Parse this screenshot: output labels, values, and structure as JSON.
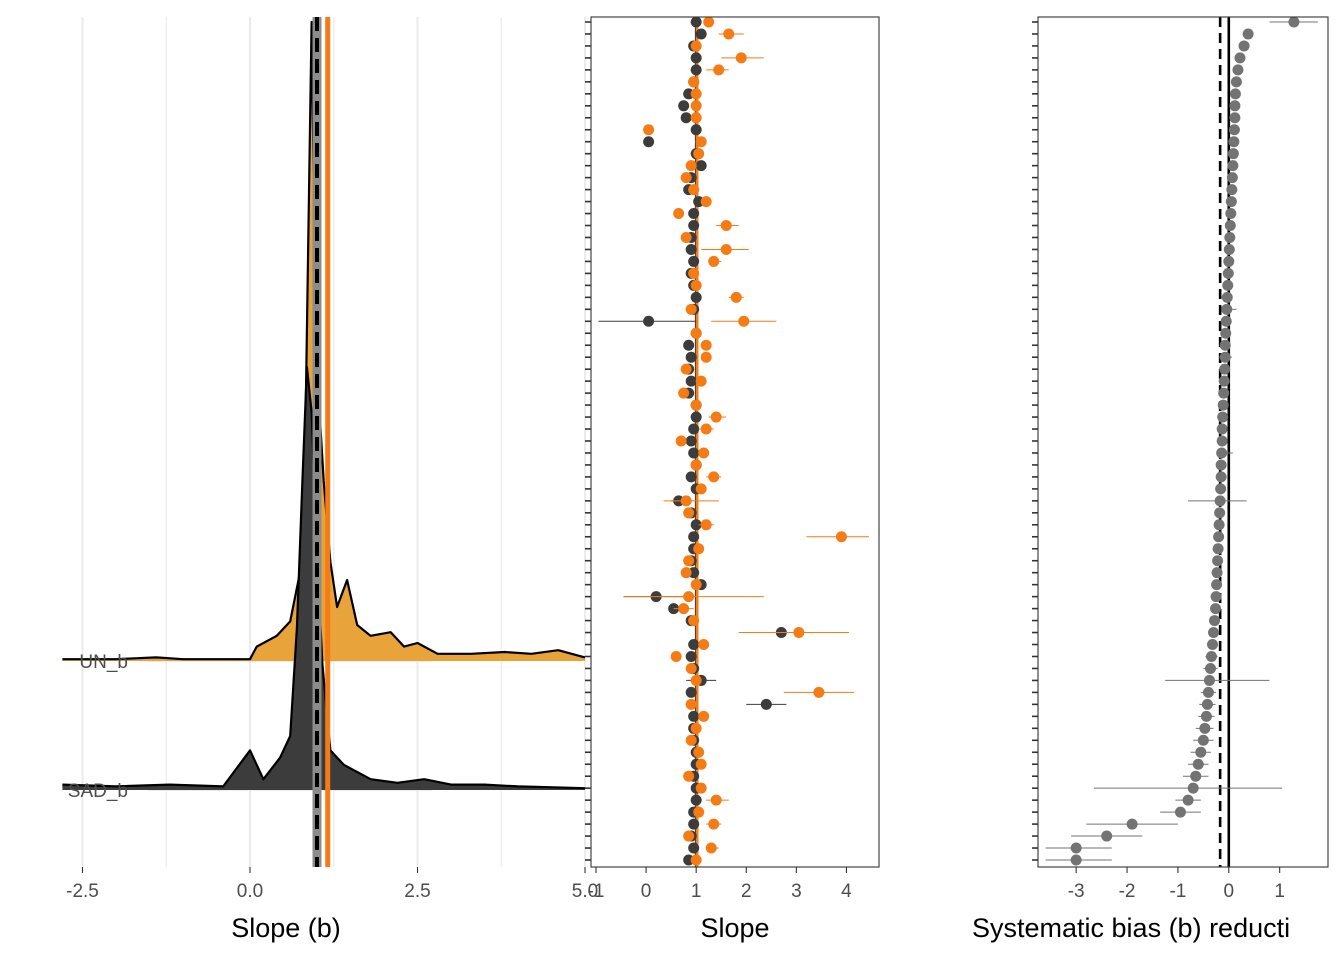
{
  "colors": {
    "orange": "#f57b14",
    "orange_fill": "#e8a33a",
    "dark": "#3c3c3c",
    "grey_point": "#737373",
    "grid": "#ebebeb",
    "axis_text": "#4d4d4d",
    "dashed_line": "#000000"
  },
  "chart_data": [
    {
      "type": "area",
      "xlabel": "Slope (b)",
      "x_ticks": [
        "-2.5",
        "0.0",
        "2.5",
        "5.0"
      ],
      "x_tick_values": [
        -2.5,
        0,
        2.5,
        5
      ],
      "xlim": [
        -2.9,
        5.2
      ],
      "categories": [
        "UN_b",
        "SAD_b"
      ],
      "reference_lines": [
        {
          "x": 1.0,
          "style": "dashed",
          "color": "#000000"
        },
        {
          "x": 1.16,
          "style": "solid",
          "color": "#f57b14"
        }
      ],
      "series": [
        {
          "name": "UN_b",
          "fill": "#e8a33a",
          "density": [
            [
              -2.8,
              0.01
            ],
            [
              -2.0,
              0.01
            ],
            [
              -1.4,
              0.02
            ],
            [
              -1.0,
              0.01
            ],
            [
              0.0,
              0.01
            ],
            [
              0.1,
              0.08
            ],
            [
              0.4,
              0.14
            ],
            [
              0.6,
              0.22
            ],
            [
              0.75,
              0.5
            ],
            [
              0.82,
              1.1
            ],
            [
              0.88,
              2.6
            ],
            [
              0.92,
              3.55
            ],
            [
              0.96,
              2.4
            ],
            [
              1.02,
              1.5
            ],
            [
              1.1,
              1.0
            ],
            [
              1.2,
              0.55
            ],
            [
              1.3,
              0.3
            ],
            [
              1.45,
              0.45
            ],
            [
              1.6,
              0.2
            ],
            [
              1.8,
              0.14
            ],
            [
              2.1,
              0.16
            ],
            [
              2.3,
              0.08
            ],
            [
              2.5,
              0.1
            ],
            [
              2.8,
              0.04
            ],
            [
              3.3,
              0.04
            ],
            [
              3.8,
              0.05
            ],
            [
              4.2,
              0.04
            ],
            [
              4.6,
              0.06
            ],
            [
              5.0,
              0.02
            ]
          ]
        },
        {
          "name": "SAD_b",
          "fill": "#3c3c3c",
          "density": [
            [
              -2.8,
              0.03
            ],
            [
              -2.0,
              0.02
            ],
            [
              -1.2,
              0.03
            ],
            [
              -0.4,
              0.02
            ],
            [
              0.0,
              0.22
            ],
            [
              0.2,
              0.06
            ],
            [
              0.45,
              0.18
            ],
            [
              0.6,
              0.3
            ],
            [
              0.7,
              0.9
            ],
            [
              0.78,
              1.7
            ],
            [
              0.85,
              2.35
            ],
            [
              0.92,
              2.1
            ],
            [
              1.0,
              1.3
            ],
            [
              1.08,
              0.7
            ],
            [
              1.2,
              0.22
            ],
            [
              1.4,
              0.14
            ],
            [
              1.8,
              0.06
            ],
            [
              2.2,
              0.04
            ],
            [
              2.6,
              0.06
            ],
            [
              3.0,
              0.03
            ],
            [
              3.5,
              0.03
            ],
            [
              4.0,
              0.02
            ],
            [
              5.0,
              0.01
            ]
          ]
        }
      ]
    },
    {
      "type": "scatter",
      "xlabel": "Slope",
      "x_ticks": [
        "-1",
        "0",
        "1",
        "2",
        "3",
        "4"
      ],
      "x_tick_values": [
        -1,
        0,
        1,
        2,
        3,
        4
      ],
      "xlim": [
        -1.1,
        4.65
      ],
      "n_rows": 71,
      "reference_lines": [
        {
          "x": 1.0,
          "color": "#3c3c3c"
        },
        {
          "x": 1.02,
          "color": "#f57b14"
        }
      ],
      "series": [
        {
          "name": "",
          "color": "#f57b14",
          "values": [
            1.25,
            1.65,
            1.0,
            1.9,
            1.45,
            0.95,
            1.0,
            1.0,
            1.0,
            0.05,
            1.1,
            1.05,
            0.9,
            0.8,
            0.95,
            1.2,
            0.65,
            1.6,
            0.8,
            1.6,
            1.35,
            0.95,
            1.0,
            1.8,
            0.9,
            1.95,
            1.0,
            1.2,
            1.2,
            0.8,
            1.1,
            0.75,
            1.0,
            1.4,
            1.2,
            0.7,
            1.15,
            1.0,
            1.35,
            1.1,
            0.8,
            0.85,
            1.2,
            3.9,
            1.05,
            0.85,
            0.8,
            1.0,
            0.85,
            0.75,
            0.95,
            3.05,
            1.15,
            0.6,
            0.9,
            1.0,
            3.45,
            0.9,
            1.15,
            1.0,
            0.9,
            1.05,
            1.1,
            0.85,
            1.1,
            1.4,
            1.05,
            1.35,
            0.85,
            1.3,
            1.0
          ],
          "err_low": [
            1.15,
            1.45,
            0.95,
            1.5,
            1.2,
            0.9,
            0.95,
            0.95,
            0.95,
            0.0,
            1.05,
            1.0,
            0.85,
            0.75,
            0.9,
            1.1,
            0.55,
            1.4,
            0.75,
            1.1,
            1.25,
            0.9,
            0.95,
            1.65,
            0.85,
            1.3,
            0.95,
            1.1,
            1.1,
            0.7,
            1.0,
            0.65,
            0.95,
            1.25,
            1.05,
            0.6,
            1.05,
            0.95,
            1.2,
            1.0,
            0.35,
            0.75,
            1.05,
            3.2,
            0.95,
            0.75,
            0.7,
            0.9,
            -0.45,
            0.55,
            0.85,
            1.85,
            1.05,
            0.5,
            0.8,
            0.9,
            2.75,
            0.8,
            1.05,
            0.9,
            0.8,
            0.95,
            1.0,
            0.75,
            1.0,
            1.2,
            0.95,
            1.2,
            0.75,
            1.2,
            0.9
          ],
          "err_high": [
            1.35,
            1.95,
            1.05,
            2.35,
            1.65,
            1.0,
            1.05,
            1.05,
            1.05,
            0.1,
            1.15,
            1.1,
            0.95,
            0.85,
            1.0,
            1.3,
            0.75,
            1.85,
            0.85,
            2.05,
            1.5,
            1.0,
            1.05,
            1.95,
            0.95,
            2.6,
            1.05,
            1.3,
            1.3,
            0.9,
            1.2,
            0.85,
            1.05,
            1.6,
            1.35,
            0.8,
            1.25,
            1.05,
            1.5,
            1.2,
            1.45,
            0.95,
            1.35,
            4.45,
            1.15,
            0.95,
            0.9,
            1.1,
            2.35,
            0.95,
            1.05,
            4.05,
            1.25,
            0.7,
            1.0,
            1.1,
            4.15,
            1.0,
            1.25,
            1.1,
            1.0,
            1.15,
            1.2,
            0.95,
            1.2,
            1.65,
            1.15,
            1.5,
            0.95,
            1.45,
            1.1
          ]
        },
        {
          "name": "",
          "color": "#3c3c3c",
          "values": [
            1.0,
            1.1,
            0.95,
            1.0,
            1.0,
            0.95,
            0.85,
            0.75,
            0.8,
            1.0,
            0.05,
            1.0,
            1.1,
            0.9,
            0.85,
            1.05,
            0.95,
            0.95,
            0.9,
            0.9,
            0.95,
            0.9,
            0.95,
            1.0,
            0.95,
            0.05,
            1.0,
            0.85,
            0.9,
            0.85,
            0.9,
            0.85,
            1.0,
            1.0,
            0.95,
            0.9,
            0.95,
            1.0,
            0.9,
            1.0,
            0.65,
            0.9,
            1.0,
            0.95,
            0.95,
            0.9,
            0.95,
            1.1,
            0.2,
            0.55,
            0.9,
            2.7,
            0.95,
            0.9,
            0.95,
            1.1,
            0.9,
            2.4,
            0.95,
            0.95,
            0.95,
            1.0,
            1.0,
            0.95,
            1.0,
            1.0,
            0.95,
            0.95,
            0.9,
            0.95,
            0.85
          ],
          "err_low": [
            0.95,
            1.0,
            0.9,
            0.95,
            0.95,
            0.9,
            0.8,
            0.7,
            0.75,
            0.95,
            0.0,
            0.95,
            1.0,
            0.85,
            0.8,
            1.0,
            0.9,
            0.9,
            0.85,
            0.85,
            0.9,
            0.85,
            0.9,
            0.95,
            0.9,
            -0.95,
            0.95,
            0.8,
            0.85,
            0.8,
            0.85,
            0.8,
            0.95,
            0.95,
            0.9,
            0.85,
            0.9,
            0.95,
            0.85,
            0.95,
            0.5,
            0.85,
            0.95,
            0.9,
            0.9,
            0.85,
            0.9,
            1.05,
            -0.45,
            0.45,
            0.85,
            2.45,
            0.9,
            0.85,
            0.9,
            0.8,
            0.85,
            2.0,
            0.9,
            0.9,
            0.9,
            0.95,
            0.95,
            0.9,
            0.95,
            0.95,
            0.9,
            0.9,
            0.85,
            0.9,
            0.8
          ],
          "err_high": [
            1.05,
            1.2,
            1.0,
            1.05,
            1.05,
            1.0,
            0.9,
            0.8,
            0.85,
            1.05,
            0.1,
            1.05,
            1.2,
            0.95,
            0.9,
            1.1,
            1.0,
            1.0,
            0.95,
            0.95,
            1.0,
            0.95,
            1.0,
            1.05,
            1.0,
            1.0,
            1.05,
            0.9,
            0.95,
            0.9,
            0.95,
            0.9,
            1.05,
            1.05,
            1.0,
            0.95,
            1.0,
            1.05,
            0.95,
            1.05,
            0.8,
            0.95,
            1.05,
            1.0,
            1.0,
            0.95,
            1.0,
            1.15,
            0.95,
            0.65,
            0.95,
            2.95,
            1.0,
            0.95,
            1.0,
            1.4,
            0.95,
            2.8,
            1.0,
            1.0,
            1.0,
            1.05,
            1.05,
            1.0,
            1.05,
            1.05,
            1.0,
            1.0,
            0.95,
            1.0,
            0.9
          ]
        }
      ]
    },
    {
      "type": "scatter",
      "xlabel": "Systematic bias (b) reducti",
      "x_ticks": [
        "-3",
        "-2",
        "-1",
        "0",
        "1"
      ],
      "x_tick_values": [
        -3,
        -2,
        -1,
        0,
        1
      ],
      "xlim": [
        -3.75,
        1.95
      ],
      "n_rows": 71,
      "reference_lines": [
        {
          "x": 0.0,
          "style": "solid",
          "color": "#000000"
        },
        {
          "x": -0.17,
          "style": "dashed",
          "color": "#000000"
        }
      ],
      "series": [
        {
          "name": "",
          "color": "#737373",
          "values": [
            1.28,
            0.38,
            0.3,
            0.22,
            0.18,
            0.15,
            0.13,
            0.12,
            0.12,
            0.11,
            0.1,
            0.09,
            0.08,
            0.07,
            0.06,
            0.05,
            0.04,
            0.03,
            0.02,
            0.01,
            0.0,
            -0.01,
            -0.02,
            -0.03,
            -0.04,
            -0.05,
            -0.06,
            -0.07,
            -0.07,
            -0.08,
            -0.09,
            -0.1,
            -0.11,
            -0.12,
            -0.13,
            -0.13,
            -0.14,
            -0.15,
            -0.15,
            -0.16,
            -0.17,
            -0.18,
            -0.19,
            -0.2,
            -0.21,
            -0.22,
            -0.23,
            -0.24,
            -0.25,
            -0.26,
            -0.28,
            -0.3,
            -0.32,
            -0.34,
            -0.36,
            -0.38,
            -0.4,
            -0.42,
            -0.44,
            -0.47,
            -0.5,
            -0.55,
            -0.6,
            -0.65,
            -0.7,
            -0.8,
            -0.95,
            -1.9,
            -2.4,
            -3.0,
            -3.0
          ],
          "err_low": [
            0.8,
            0.3,
            0.2,
            0.15,
            0.12,
            0.1,
            0.08,
            0.07,
            0.07,
            0.06,
            0.05,
            0.04,
            0.03,
            0.02,
            0.01,
            0.0,
            -0.01,
            -0.02,
            -0.03,
            -0.04,
            -0.05,
            -0.06,
            -0.07,
            -0.08,
            -0.09,
            -0.1,
            -0.11,
            -0.12,
            -0.2,
            -0.13,
            -0.14,
            -0.15,
            -0.16,
            -0.17,
            -0.18,
            -0.18,
            -0.2,
            -0.2,
            -0.2,
            -0.22,
            -0.8,
            -0.24,
            -0.25,
            -0.26,
            -0.28,
            -0.29,
            -0.3,
            -0.32,
            -0.33,
            -0.35,
            -0.38,
            -0.4,
            -0.43,
            -0.46,
            -0.5,
            -1.25,
            -0.55,
            -0.58,
            -0.6,
            -0.65,
            -0.7,
            -0.75,
            -0.8,
            -0.9,
            -2.65,
            -1.05,
            -1.35,
            -2.8,
            -3.1,
            -3.6,
            -3.6
          ],
          "err_high": [
            1.75,
            0.46,
            0.4,
            0.3,
            0.24,
            0.2,
            0.18,
            0.17,
            0.17,
            0.16,
            0.15,
            0.14,
            0.13,
            0.12,
            0.11,
            0.1,
            0.09,
            0.08,
            0.07,
            0.06,
            0.05,
            0.04,
            0.03,
            0.02,
            0.15,
            0.0,
            -0.01,
            -0.02,
            0.06,
            -0.03,
            -0.04,
            -0.05,
            -0.06,
            -0.07,
            -0.08,
            -0.08,
            0.08,
            -0.1,
            -0.1,
            -0.1,
            0.35,
            -0.12,
            -0.13,
            -0.14,
            -0.15,
            -0.15,
            -0.16,
            -0.16,
            -0.17,
            -0.17,
            -0.18,
            -0.2,
            -0.21,
            -0.22,
            -0.22,
            0.8,
            -0.25,
            -0.26,
            -0.28,
            -0.3,
            -0.3,
            -0.35,
            -0.4,
            -0.4,
            1.05,
            -0.55,
            -0.55,
            -1.0,
            -1.7,
            -2.3,
            -2.3
          ]
        }
      ]
    }
  ]
}
